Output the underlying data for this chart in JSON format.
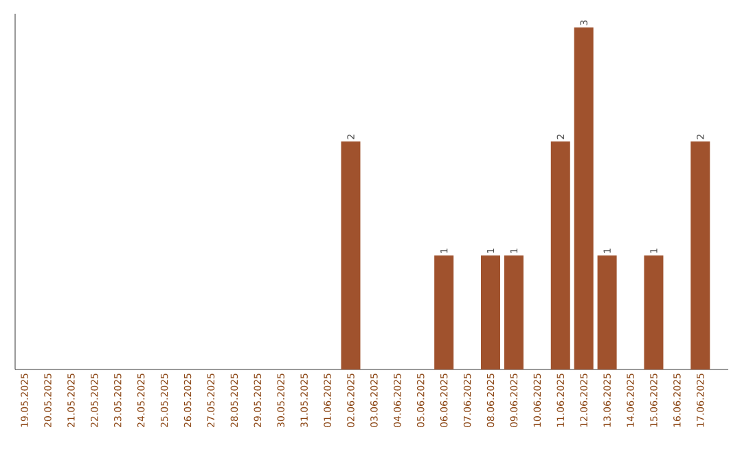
{
  "chart_data": {
    "type": "bar",
    "categories": [
      "19.05.2025",
      "20.05.2025",
      "21.05.2025",
      "22.05.2025",
      "23.05.2025",
      "24.05.2025",
      "25.05.2025",
      "26.05.2025",
      "27.05.2025",
      "28.05.2025",
      "29.05.2025",
      "30.05.2025",
      "31.05.2025",
      "01.06.2025",
      "02.06.2025",
      "03.06.2025",
      "04.06.2025",
      "05.06.2025",
      "06.06.2025",
      "07.06.2025",
      "08.06.2025",
      "09.06.2025",
      "10.06.2025",
      "11.06.2025",
      "12.06.2025",
      "13.06.2025",
      "14.06.2025",
      "15.06.2025",
      "16.06.2025",
      "17.06.2025"
    ],
    "values": [
      null,
      null,
      null,
      null,
      null,
      null,
      null,
      null,
      null,
      null,
      null,
      null,
      null,
      null,
      2,
      null,
      null,
      null,
      1,
      null,
      1,
      1,
      null,
      2,
      3,
      1,
      null,
      1,
      null,
      2
    ],
    "color": "#a0522d",
    "data_labels": true
  }
}
